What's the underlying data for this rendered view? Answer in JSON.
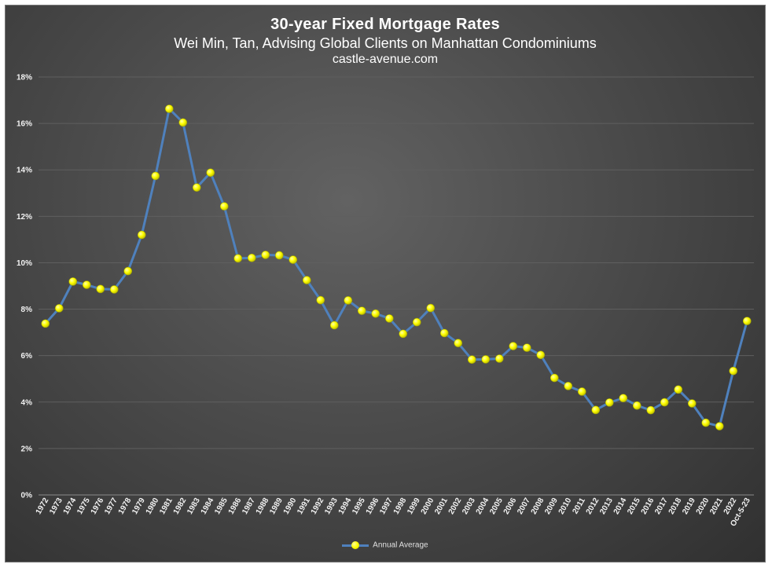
{
  "chart_data": {
    "type": "line",
    "title": "30-year Fixed Mortgage Rates",
    "subtitle": "Wei Min, Tan, Advising Global Clients on Manhattan Condominiums",
    "source": "castle-avenue.com",
    "xlabel": "",
    "ylabel": "",
    "ylim": [
      0,
      18
    ],
    "yticks": [
      "0%",
      "2%",
      "4%",
      "6%",
      "8%",
      "10%",
      "12%",
      "14%",
      "16%",
      "18%"
    ],
    "grid": true,
    "legend_position": "bottom",
    "line_color": "#4f81bd",
    "marker_color": "#ffff00",
    "categories": [
      "1972",
      "1973",
      "1974",
      "1975",
      "1976",
      "1977",
      "1978",
      "1979",
      "1980",
      "1981",
      "1982",
      "1983",
      "1984",
      "1985",
      "1986",
      "1987",
      "1988",
      "1989",
      "1990",
      "1991",
      "1992",
      "1993",
      "1994",
      "1995",
      "1996",
      "1997",
      "1998",
      "1999",
      "2000",
      "2001",
      "2002",
      "2003",
      "2004",
      "2005",
      "2006",
      "2007",
      "2008",
      "2009",
      "2010",
      "2011",
      "2012",
      "2013",
      "2014",
      "2015",
      "2016",
      "2017",
      "2018",
      "2019",
      "2020",
      "2021",
      "2022",
      "Oct-5-23"
    ],
    "series": [
      {
        "name": "Annual Average",
        "values": [
          7.38,
          8.04,
          9.19,
          9.05,
          8.87,
          8.85,
          9.64,
          11.2,
          13.74,
          16.63,
          16.04,
          13.24,
          13.88,
          12.43,
          10.19,
          10.21,
          10.34,
          10.32,
          10.13,
          9.25,
          8.39,
          7.31,
          8.38,
          7.93,
          7.81,
          7.6,
          6.94,
          7.44,
          8.05,
          6.97,
          6.54,
          5.83,
          5.84,
          5.87,
          6.41,
          6.34,
          6.03,
          5.04,
          4.69,
          4.45,
          3.66,
          3.98,
          4.17,
          3.85,
          3.65,
          3.99,
          4.54,
          3.94,
          3.11,
          2.96,
          5.34,
          7.49
        ]
      }
    ]
  }
}
